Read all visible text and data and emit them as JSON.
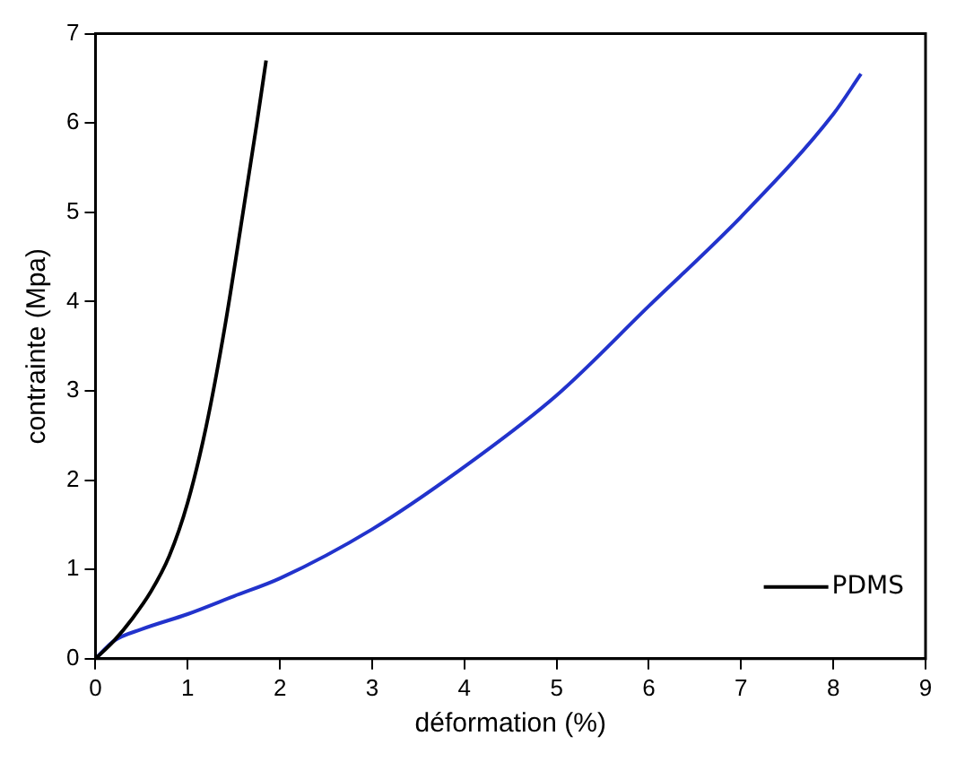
{
  "chart_data": {
    "type": "line",
    "xlabel": "déformation (%)",
    "ylabel": "contrainte (Mpa)",
    "xlim": [
      0,
      9
    ],
    "xticks": [
      0,
      1,
      2,
      3,
      4,
      5,
      6,
      7,
      8,
      9
    ],
    "ylim": [
      0,
      7
    ],
    "yticks": [
      0,
      1,
      2,
      3,
      4,
      5,
      6,
      7
    ],
    "grid": false,
    "legend": "bottom right",
    "marker": "none",
    "line_style": "solid",
    "series": [
      {
        "name": "PDMS",
        "color": "#000000",
        "x": [
          0,
          0.2,
          0.4,
          0.6,
          0.8,
          1.0,
          1.2,
          1.4,
          1.6,
          1.75,
          1.85
        ],
        "values": [
          0,
          0.2,
          0.45,
          0.75,
          1.15,
          1.75,
          2.6,
          3.7,
          5.0,
          6.0,
          6.7
        ]
      },
      {
        "color": "#2233cc",
        "x": [
          0,
          0.2,
          0.5,
          1,
          1.5,
          2,
          3,
          4,
          5,
          6,
          7,
          8,
          8.3
        ],
        "values": [
          0,
          0.2,
          0.33,
          0.5,
          0.7,
          0.9,
          1.45,
          2.15,
          2.95,
          3.95,
          4.95,
          6.1,
          6.55
        ]
      }
    ]
  }
}
